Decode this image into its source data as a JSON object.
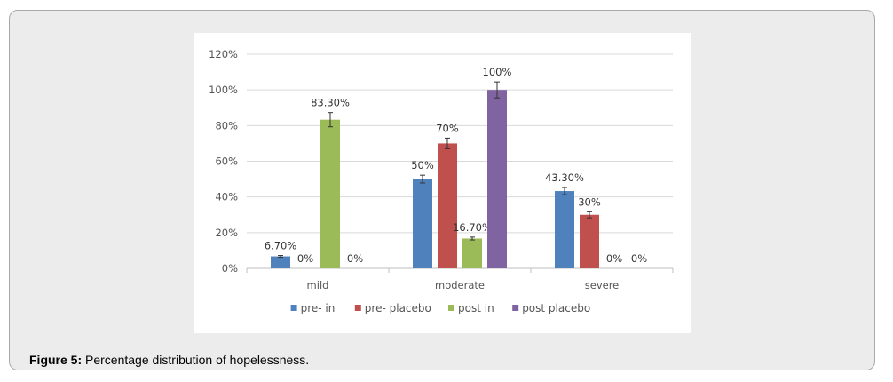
{
  "figure": {
    "caption_label": "Figure 5:",
    "caption_text": " Percentage distribution of hopelessness."
  },
  "chart_data": {
    "type": "bar",
    "categories": [
      "mild",
      "moderate",
      "severe"
    ],
    "series": [
      {
        "name": "pre- in",
        "color": "#4f81bd",
        "values": [
          6.7,
          50,
          43.3
        ],
        "labels": [
          "6.70%",
          "50%",
          "43.30%"
        ],
        "errors": [
          0.5,
          2.2,
          2.0
        ]
      },
      {
        "name": "pre- placebo",
        "color": "#c0504d",
        "values": [
          0,
          70,
          30
        ],
        "labels": [
          "0%",
          "70%",
          "30%"
        ],
        "errors": [
          0,
          3.0,
          1.7
        ]
      },
      {
        "name": "post in",
        "color": "#9bbb59",
        "values": [
          83.3,
          16.7,
          0
        ],
        "labels": [
          "83.30%",
          "16.70%",
          "0%"
        ],
        "errors": [
          4.0,
          0.8,
          0
        ]
      },
      {
        "name": "post placebo",
        "color": "#8064a2",
        "values": [
          0,
          100,
          0
        ],
        "labels": [
          "0%",
          "100%",
          "0%"
        ],
        "errors": [
          0,
          4.5,
          0
        ]
      }
    ],
    "ylim": [
      0,
      120
    ],
    "yticks": [
      "0%",
      "20%",
      "40%",
      "60%",
      "80%",
      "100%",
      "120%"
    ],
    "grid": true,
    "legend_position": "bottom"
  }
}
